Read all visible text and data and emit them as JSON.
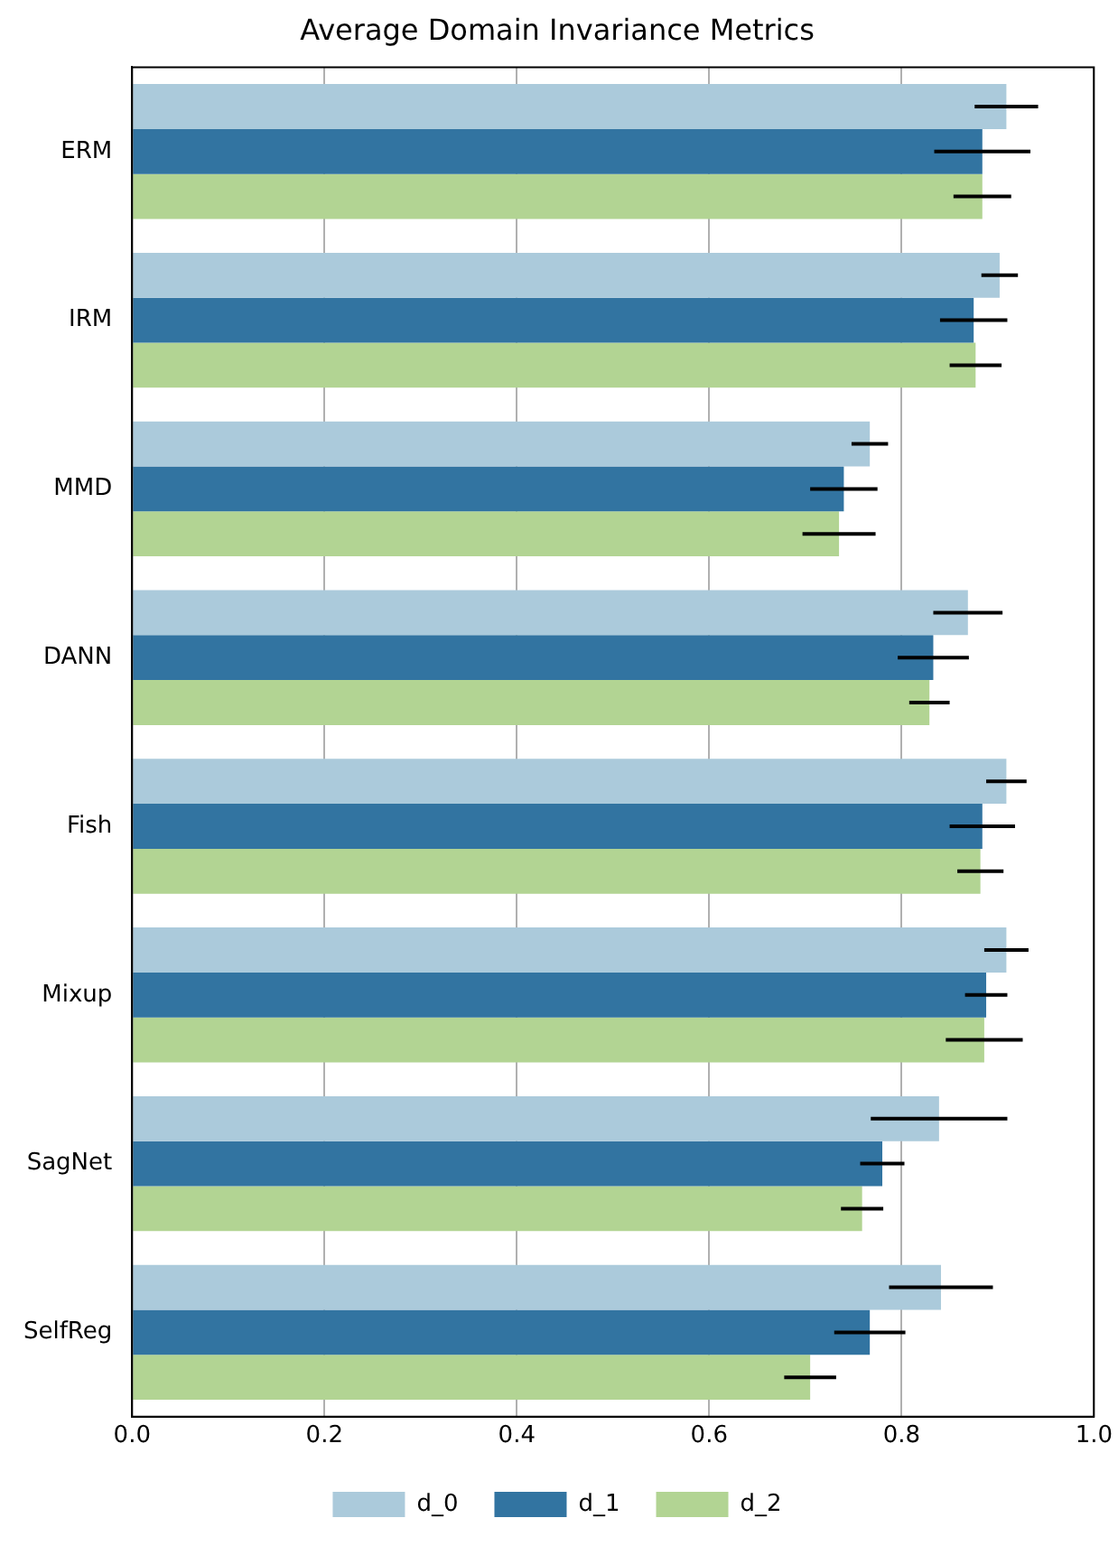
{
  "chart_data": {
    "type": "bar",
    "orientation": "horizontal",
    "title": "Average Domain Invariance Metrics",
    "categories": [
      "ERM",
      "IRM",
      "MMD",
      "DANN",
      "Fish",
      "Mixup",
      "SagNet",
      "SelfReg"
    ],
    "series": [
      {
        "name": "d_0",
        "color": "#abcadb",
        "values": [
          0.909,
          0.902,
          0.767,
          0.869,
          0.909,
          0.909,
          0.839,
          0.841
        ],
        "errors": [
          0.033,
          0.019,
          0.019,
          0.036,
          0.021,
          0.023,
          0.071,
          0.054
        ]
      },
      {
        "name": "d_1",
        "color": "#3274a1",
        "values": [
          0.884,
          0.875,
          0.74,
          0.833,
          0.884,
          0.888,
          0.78,
          0.767
        ],
        "errors": [
          0.05,
          0.035,
          0.035,
          0.037,
          0.034,
          0.022,
          0.023,
          0.037
        ]
      },
      {
        "name": "d_2",
        "color": "#b2d493",
        "values": [
          0.884,
          0.877,
          0.735,
          0.829,
          0.882,
          0.886,
          0.759,
          0.705
        ],
        "errors": [
          0.03,
          0.027,
          0.038,
          0.021,
          0.024,
          0.04,
          0.022,
          0.027
        ]
      }
    ],
    "xlim": [
      0,
      1.0
    ],
    "xticks": [
      {
        "value": 0,
        "label": "0.0"
      },
      {
        "value": 0.2,
        "label": "0.2"
      },
      {
        "value": 0.4,
        "label": "0.4"
      },
      {
        "value": 0.6,
        "label": "0.6"
      },
      {
        "value": 0.8,
        "label": "0.8"
      },
      {
        "value": 1.0,
        "label": "1.0"
      }
    ],
    "grid": "x",
    "legend": "bottom"
  }
}
